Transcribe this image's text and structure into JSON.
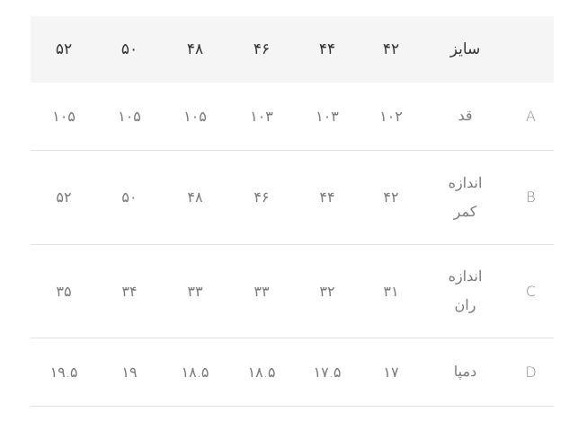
{
  "size_table": {
    "header": {
      "corner": "",
      "label": "سایز",
      "sizes": [
        "۴۲",
        "۴۴",
        "۴۶",
        "۴۸",
        "۵۰",
        "۵۲"
      ]
    },
    "rows": [
      {
        "code": "A",
        "name": "قد",
        "values": [
          "۱۰۲",
          "۱۰۳",
          "۱۰۳",
          "۱۰۵",
          "۱۰۵",
          "۱۰۵"
        ]
      },
      {
        "code": "B",
        "name": "اندازه\nکمر",
        "values": [
          "۴۲",
          "۴۴",
          "۴۶",
          "۴۸",
          "۵۰",
          "۵۲"
        ]
      },
      {
        "code": "C",
        "name": "اندازه\nران",
        "values": [
          "۳۱",
          "۳۲",
          "۳۳",
          "۳۳",
          "۳۴",
          "۳۵"
        ]
      },
      {
        "code": "D",
        "name": "دمپا",
        "values": [
          "۱۷",
          "۱۷.۵",
          "۱۸.۵",
          "۱۸.۵",
          "۱۹",
          "۱۹.۵"
        ]
      }
    ]
  }
}
